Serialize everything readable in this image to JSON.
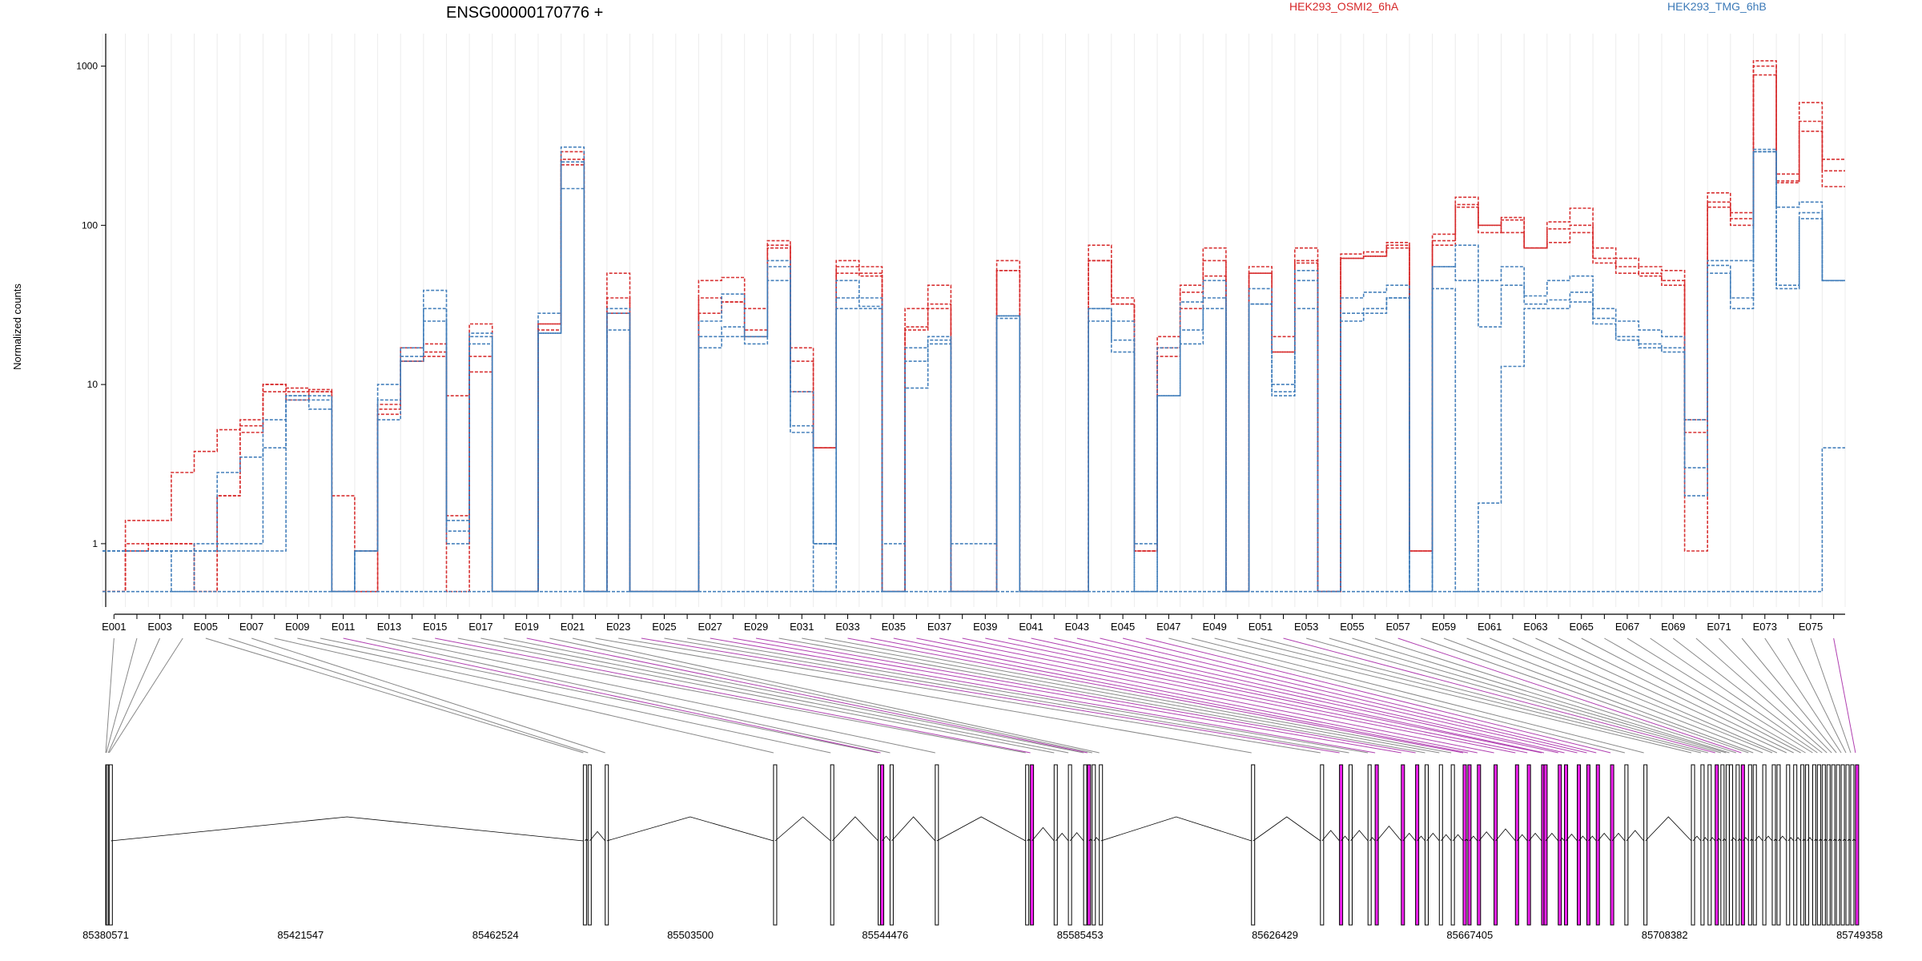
{
  "chart_data": {
    "type": "line",
    "title": "ENSG00000170776 +",
    "ylabel": "Normalized counts",
    "xlabel": "",
    "yscale": "log",
    "grid": true,
    "legend_placement": "top",
    "y_ticks": [
      "1",
      "10",
      "100",
      "1000"
    ],
    "y_tick_values": [
      1,
      10,
      100,
      1000
    ],
    "ylim": [
      0.4,
      1600
    ],
    "legend": [
      {
        "name": "HEK293_OSMI2_6hA",
        "color": "#d62728"
      },
      {
        "name": "HEK293_TMG_6hB",
        "color": "#3c7ab8"
      }
    ],
    "exon_bins": [
      "E001",
      "E002",
      "E003",
      "E004",
      "E005",
      "E006",
      "E007",
      "E008",
      "E009",
      "E010",
      "E011",
      "E012",
      "E013",
      "E014",
      "E015",
      "E016",
      "E017",
      "E018",
      "E019",
      "E020",
      "E021",
      "E022",
      "E023",
      "E024",
      "E025",
      "E026",
      "E027",
      "E028",
      "E029",
      "E030",
      "E031",
      "E032",
      "E033",
      "E034",
      "E035",
      "E036",
      "E037",
      "E038",
      "E039",
      "E040",
      "E041",
      "E042",
      "E043",
      "E044",
      "E045",
      "E046",
      "E047",
      "E048",
      "E049",
      "E050",
      "E051",
      "E052",
      "E053",
      "E054",
      "E055",
      "E056",
      "E057",
      "E058",
      "E059",
      "E060",
      "E061",
      "E062",
      "E063",
      "E064",
      "E065",
      "E066",
      "E067",
      "E068",
      "E069",
      "E070",
      "E071",
      "E072",
      "E073",
      "E074",
      "E075",
      "E076"
    ],
    "x_tick_labels": [
      "E001",
      "E003",
      "E005",
      "E007",
      "E009",
      "E011",
      "E013",
      "E015",
      "E017",
      "E019",
      "E021",
      "E023",
      "E025",
      "E027",
      "E029",
      "E031",
      "E033",
      "E035",
      "E037",
      "E039",
      "E041",
      "E043",
      "E045",
      "E047",
      "E049",
      "E051",
      "E053",
      "E055",
      "E057",
      "E059",
      "E061",
      "E063",
      "E065",
      "E067",
      "E069",
      "E071",
      "E073",
      "E075"
    ],
    "highlighted_bins": [
      11,
      15,
      19,
      24,
      27,
      28,
      29,
      33,
      34,
      35,
      36,
      37,
      38,
      39,
      40,
      41,
      42,
      43,
      44,
      45,
      46,
      52,
      57,
      76
    ],
    "series": [
      {
        "name": "HEK293_OSMI2_6hA",
        "group": "HEK293_OSMI2_6hA",
        "values": [
          0.5,
          1.4,
          1.4,
          2.8,
          3.8,
          5.2,
          6.0,
          10.0,
          9.5,
          9.0,
          2.0,
          0.9,
          7.5,
          17.0,
          18.0,
          1.5,
          24.0,
          0.5,
          0.5,
          24.0,
          290.0,
          0.5,
          50.0,
          0.5,
          0.5,
          0.5,
          45.0,
          47.0,
          30.0,
          80.0,
          17.0,
          4.0,
          60.0,
          55.0,
          0.5,
          30.0,
          42.0,
          0.5,
          0.5,
          60.0,
          0.5,
          0.5,
          0.5,
          75.0,
          35.0,
          0.9,
          20.0,
          42.0,
          72.0,
          0.5,
          55.0,
          20.0,
          72.0,
          0.5,
          66.0,
          68.0,
          78.0,
          0.9,
          88.0,
          150.0,
          90.0,
          112.0,
          72.0,
          105.0,
          128.0,
          72.0,
          62.0,
          55.0,
          52.0,
          6.0,
          160.0,
          120.0,
          1080.0,
          210.0,
          590.0,
          260.0
        ]
      },
      {
        "name": "HEK293_OSMI2_6hA",
        "group": "HEK293_OSMI2_6hA",
        "values": [
          0.5,
          1.0,
          1.0,
          1.0,
          0.5,
          2.0,
          5.0,
          9.0,
          8.0,
          9.3,
          0.5,
          0.5,
          7.0,
          14.0,
          15.0,
          8.5,
          12.0,
          0.5,
          0.5,
          22.0,
          260.0,
          0.5,
          35.0,
          0.5,
          0.5,
          0.5,
          35.0,
          33.0,
          20.0,
          72.0,
          14.0,
          4.0,
          55.0,
          48.0,
          0.5,
          22.0,
          32.0,
          0.5,
          0.5,
          52.0,
          0.5,
          0.5,
          0.5,
          60.0,
          32.0,
          0.9,
          17.0,
          38.0,
          60.0,
          0.5,
          50.0,
          16.0,
          60.0,
          0.5,
          62.0,
          64.0,
          72.0,
          0.9,
          75.0,
          135.0,
          100.0,
          90.0,
          72.0,
          95.0,
          100.0,
          62.0,
          55.0,
          50.0,
          45.0,
          5.0,
          140.0,
          110.0,
          880.0,
          185.0,
          390.0,
          220.0
        ]
      },
      {
        "name": "HEK293_OSMI2_6hA",
        "group": "HEK293_OSMI2_6hA",
        "values": [
          0.5,
          0.9,
          1.0,
          1.0,
          0.5,
          2.0,
          5.5,
          10.0,
          9.0,
          9.0,
          0.5,
          0.5,
          6.5,
          14.0,
          16.0,
          0.5,
          15.0,
          0.5,
          0.5,
          24.0,
          240.0,
          0.5,
          28.0,
          0.5,
          0.5,
          0.5,
          28.0,
          33.0,
          22.0,
          75.0,
          9.0,
          4.0,
          50.0,
          50.0,
          0.5,
          23.0,
          30.0,
          0.5,
          0.5,
          52.0,
          0.5,
          0.5,
          0.5,
          60.0,
          32.0,
          0.9,
          15.0,
          30.0,
          48.0,
          0.5,
          50.0,
          16.0,
          58.0,
          0.5,
          62.0,
          64.0,
          75.0,
          0.9,
          80.0,
          130.0,
          100.0,
          108.0,
          72.0,
          78.0,
          90.0,
          58.0,
          50.0,
          48.0,
          42.0,
          0.9,
          130.0,
          100.0,
          1000.0,
          190.0,
          450.0,
          175.0
        ]
      },
      {
        "name": "HEK293_TMG_6hB",
        "group": "HEK293_TMG_6hB",
        "values": [
          0.9,
          0.9,
          0.9,
          0.5,
          1.0,
          1.0,
          1.0,
          6.0,
          8.5,
          8.5,
          0.5,
          0.9,
          10.0,
          17.0,
          39.0,
          1.0,
          20.0,
          0.5,
          0.5,
          28.0,
          310.0,
          0.5,
          30.0,
          0.5,
          0.5,
          0.5,
          25.0,
          37.0,
          20.0,
          60.0,
          9.0,
          1.0,
          45.0,
          35.0,
          1.0,
          17.0,
          20.0,
          1.0,
          1.0,
          27.0,
          0.5,
          0.5,
          0.5,
          30.0,
          25.0,
          1.0,
          17.0,
          33.0,
          45.0,
          0.5,
          40.0,
          10.0,
          52.0,
          0.5,
          35.0,
          38.0,
          42.0,
          0.5,
          55.0,
          75.0,
          45.0,
          55.0,
          36.0,
          45.0,
          48.0,
          30.0,
          25.0,
          22.0,
          20.0,
          6.0,
          60.0,
          60.0,
          300.0,
          130.0,
          140.0,
          45.0
        ]
      },
      {
        "name": "HEK293_TMG_6hB",
        "group": "HEK293_TMG_6hB",
        "values": [
          0.9,
          0.9,
          0.9,
          0.9,
          0.9,
          2.8,
          3.5,
          4.0,
          8.5,
          7.0,
          0.5,
          0.9,
          6.0,
          15.0,
          25.0,
          1.2,
          18.0,
          0.5,
          0.5,
          21.0,
          170.0,
          0.5,
          22.0,
          0.5,
          0.5,
          0.5,
          17.0,
          20.0,
          18.0,
          45.0,
          5.0,
          0.5,
          30.0,
          30.0,
          0.5,
          9.5,
          19.0,
          0.5,
          0.5,
          27.0,
          0.5,
          0.5,
          0.5,
          25.0,
          16.0,
          0.5,
          8.5,
          18.0,
          30.0,
          0.5,
          32.0,
          8.5,
          30.0,
          0.5,
          25.0,
          28.0,
          35.0,
          0.5,
          40.0,
          0.5,
          1.8,
          13.0,
          30.0,
          30.0,
          33.0,
          24.0,
          19.0,
          17.0,
          16.0,
          2.0,
          50.0,
          30.0,
          290.0,
          40.0,
          110.0,
          45.0
        ]
      },
      {
        "name": "HEK293_TMG_6hB",
        "group": "HEK293_TMG_6hB",
        "values": [
          0.9,
          0.9,
          0.9,
          0.9,
          0.9,
          0.9,
          0.9,
          0.9,
          8.0,
          8.0,
          0.5,
          0.9,
          8.0,
          14.0,
          30.0,
          1.4,
          21.0,
          0.5,
          0.5,
          21.0,
          250.0,
          0.5,
          28.0,
          0.5,
          0.5,
          0.5,
          20.0,
          23.0,
          20.0,
          55.0,
          5.5,
          1.0,
          35.0,
          31.0,
          0.5,
          14.0,
          18.0,
          0.5,
          0.5,
          26.0,
          0.5,
          0.5,
          0.5,
          30.0,
          19.0,
          0.5,
          8.5,
          22.0,
          35.0,
          0.5,
          32.0,
          9.0,
          45.0,
          0.5,
          28.0,
          30.0,
          35.0,
          0.5,
          55.0,
          45.0,
          23.0,
          42.0,
          32.0,
          34.0,
          38.0,
          26.0,
          20.0,
          18.0,
          17.0,
          3.0,
          56.0,
          35.0,
          290.0,
          42.0,
          120.0,
          45.0
        ]
      },
      {
        "name": "HEK293_TMG_6hB",
        "group": "HEK293_TMG_6hB",
        "values": [
          0.5,
          0.5,
          0.5,
          0.5,
          0.5,
          0.5,
          0.5,
          0.5,
          0.5,
          0.5,
          0.5,
          0.5,
          0.5,
          0.5,
          0.5,
          0.5,
          0.5,
          0.5,
          0.5,
          0.5,
          0.5,
          0.5,
          0.5,
          0.5,
          0.5,
          0.5,
          0.5,
          0.5,
          0.5,
          0.5,
          0.5,
          0.5,
          0.5,
          0.5,
          0.5,
          0.5,
          0.5,
          0.5,
          0.5,
          0.5,
          0.5,
          0.5,
          0.5,
          0.5,
          0.5,
          0.5,
          0.5,
          0.5,
          0.5,
          0.5,
          0.5,
          0.5,
          0.5,
          0.5,
          0.5,
          0.5,
          0.5,
          0.5,
          0.5,
          0.5,
          0.5,
          0.5,
          0.5,
          0.5,
          0.5,
          0.5,
          0.5,
          0.5,
          0.5,
          0.5,
          0.5,
          0.5,
          0.5,
          0.5,
          0.5,
          4.0
        ]
      }
    ],
    "genomic_axis": {
      "tick_labels": [
        "85380571",
        "85421547",
        "85462524",
        "85503500",
        "85544476",
        "85585453",
        "85626429",
        "85667405",
        "85708382",
        "85749358"
      ],
      "tick_values": [
        85380571,
        85421547,
        85462524,
        85503500,
        85544476,
        85585453,
        85626429,
        85667405,
        85708382,
        85749358
      ],
      "range": [
        85380571,
        85749358
      ],
      "bin_starts": [
        85380571,
        85380700,
        85381100,
        85381300,
        85481000,
        85482000,
        85485600,
        85521000,
        85533000,
        85543000,
        85543500,
        85545500,
        85555000,
        85574000,
        85575000,
        85580000,
        85583000,
        85586200,
        85587000,
        85588000,
        85589500,
        85621500,
        85636000,
        85640000,
        85642000,
        85646000,
        85647500,
        85653000,
        85656000,
        85658000,
        85661000,
        85663500,
        85666000,
        85667000,
        85669000,
        85672500,
        85677000,
        85679500,
        85682500,
        85683000,
        85686000,
        85687300,
        85690000,
        85692000,
        85694000,
        85697000,
        85700000,
        85704000,
        85714000,
        85716000,
        85717500,
        85719000,
        85720200,
        85721300,
        85722000,
        85723400,
        85724500,
        85726000,
        85727000,
        85729000,
        85731000,
        85732000,
        85734000,
        85735500,
        85737000,
        85738000,
        85739500,
        85740500,
        85741500,
        85742500,
        85743500,
        85744500,
        85745500,
        85746500,
        85747500,
        85748500
      ],
      "colors": {
        "exon_line": "#000000",
        "highlight": "#ee22ee",
        "shade": "#c8c8c8",
        "connector": "#888888",
        "connector_highlight": "#b040b0"
      }
    }
  }
}
